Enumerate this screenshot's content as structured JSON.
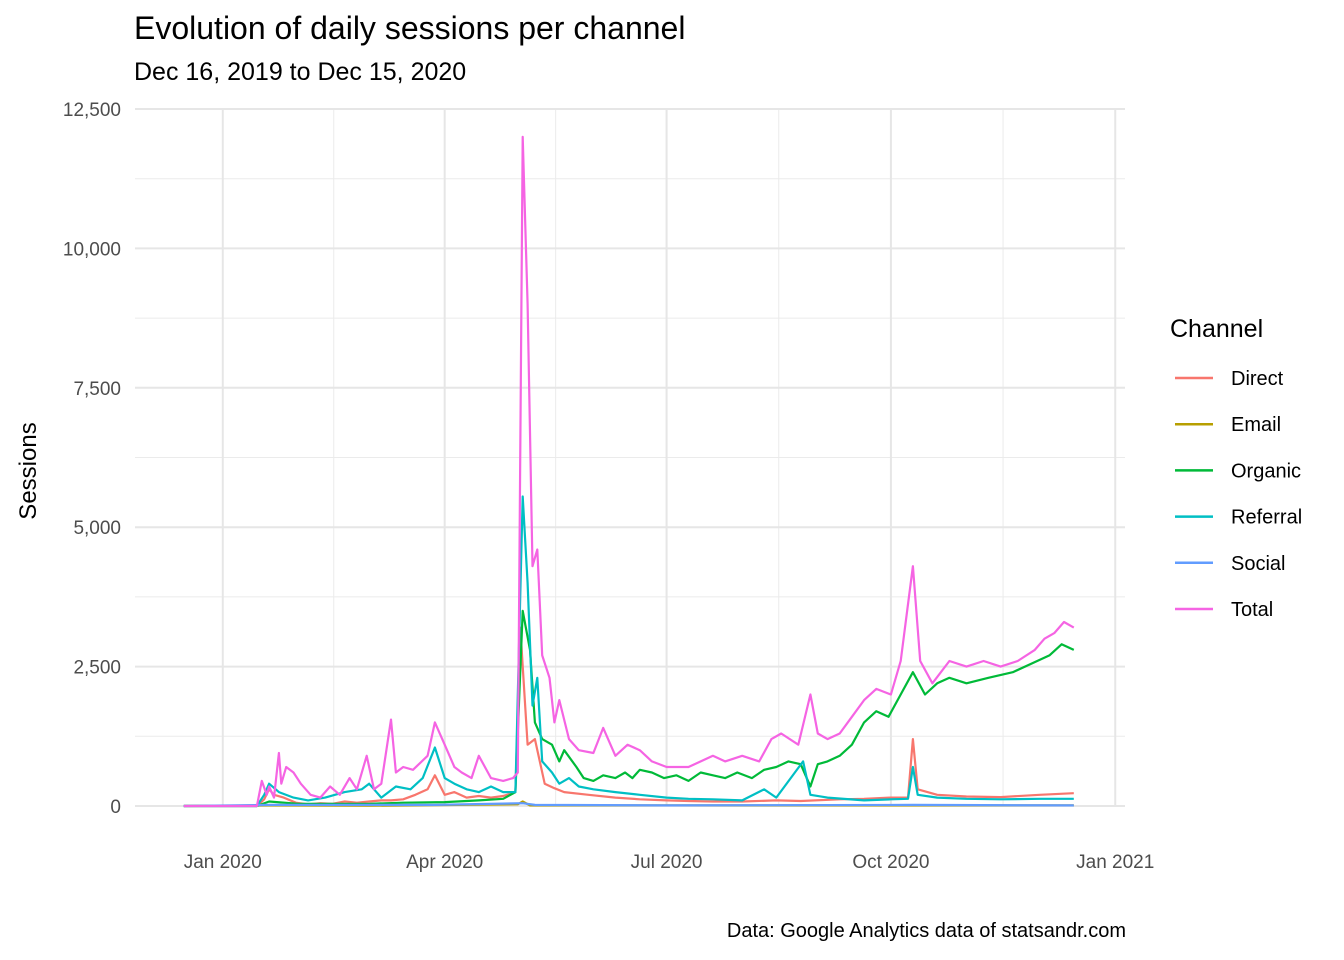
{
  "chart_data": {
    "type": "line",
    "title": "Evolution of daily sessions per channel",
    "subtitle": "Dec 16, 2019 to Dec 15, 2020",
    "caption": "Data: Google Analytics data of statsandr.com",
    "xlabel": "",
    "ylabel": "Sessions",
    "xlim": [
      "2019-11-26",
      "2021-01-05"
    ],
    "ylim": [
      0,
      12500
    ],
    "x_ticks": [
      {
        "date": "2020-01-01",
        "label": "Jan 2020"
      },
      {
        "date": "2020-04-01",
        "label": "Apr 2020"
      },
      {
        "date": "2020-07-01",
        "label": "Jul 2020"
      },
      {
        "date": "2020-10-01",
        "label": "Oct 2020"
      },
      {
        "date": "2021-01-01",
        "label": "Jan 2021"
      }
    ],
    "y_ticks": [
      {
        "value": 0,
        "label": "0"
      },
      {
        "value": 2500,
        "label": "2,500"
      },
      {
        "value": 5000,
        "label": "5,000"
      },
      {
        "value": 7500,
        "label": "7,500"
      },
      {
        "value": 10000,
        "label": "10,000"
      },
      {
        "value": 12500,
        "label": "12,500"
      }
    ],
    "grid": true,
    "legend": {
      "title": "Channel",
      "placement": "right"
    },
    "series": [
      {
        "name": "Direct",
        "color": "#F8766D",
        "points": [
          [
            "2019-12-16",
            0
          ],
          [
            "2020-01-15",
            0
          ],
          [
            "2020-01-18",
            120
          ],
          [
            "2020-01-20",
            300
          ],
          [
            "2020-01-22",
            200
          ],
          [
            "2020-01-26",
            150
          ],
          [
            "2020-01-31",
            60
          ],
          [
            "2020-02-05",
            30
          ],
          [
            "2020-02-10",
            50
          ],
          [
            "2020-02-15",
            40
          ],
          [
            "2020-02-20",
            80
          ],
          [
            "2020-02-25",
            60
          ],
          [
            "2020-03-01",
            80
          ],
          [
            "2020-03-06",
            100
          ],
          [
            "2020-03-10",
            100
          ],
          [
            "2020-03-15",
            120
          ],
          [
            "2020-03-20",
            200
          ],
          [
            "2020-03-25",
            300
          ],
          [
            "2020-03-28",
            550
          ],
          [
            "2020-04-01",
            200
          ],
          [
            "2020-04-05",
            250
          ],
          [
            "2020-04-10",
            150
          ],
          [
            "2020-04-15",
            180
          ],
          [
            "2020-04-20",
            150
          ],
          [
            "2020-04-25",
            180
          ],
          [
            "2020-04-30",
            250
          ],
          [
            "2020-05-02",
            3200
          ],
          [
            "2020-05-05",
            1100
          ],
          [
            "2020-05-08",
            1200
          ],
          [
            "2020-05-12",
            400
          ],
          [
            "2020-05-16",
            320
          ],
          [
            "2020-05-20",
            250
          ],
          [
            "2020-05-30",
            200
          ],
          [
            "2020-06-10",
            150
          ],
          [
            "2020-06-20",
            120
          ],
          [
            "2020-07-01",
            100
          ],
          [
            "2020-07-10",
            90
          ],
          [
            "2020-07-20",
            80
          ],
          [
            "2020-08-01",
            80
          ],
          [
            "2020-08-15",
            100
          ],
          [
            "2020-08-25",
            90
          ],
          [
            "2020-09-10",
            120
          ],
          [
            "2020-09-20",
            130
          ],
          [
            "2020-10-01",
            150
          ],
          [
            "2020-10-08",
            150
          ],
          [
            "2020-10-10",
            1200
          ],
          [
            "2020-10-12",
            300
          ],
          [
            "2020-10-20",
            200
          ],
          [
            "2020-11-01",
            170
          ],
          [
            "2020-11-15",
            160
          ],
          [
            "2020-12-01",
            200
          ],
          [
            "2020-12-15",
            230
          ]
        ]
      },
      {
        "name": "Email",
        "color": "#B79F00",
        "points": [
          [
            "2019-12-16",
            0
          ],
          [
            "2020-01-20",
            10
          ],
          [
            "2020-03-01",
            5
          ],
          [
            "2020-05-01",
            30
          ],
          [
            "2020-05-03",
            80
          ],
          [
            "2020-05-06",
            10
          ],
          [
            "2020-07-01",
            10
          ],
          [
            "2020-09-01",
            10
          ],
          [
            "2020-12-15",
            10
          ]
        ]
      },
      {
        "name": "Organic",
        "color": "#00BA38",
        "points": [
          [
            "2019-12-16",
            0
          ],
          [
            "2020-01-15",
            0
          ],
          [
            "2020-01-20",
            80
          ],
          [
            "2020-02-01",
            40
          ],
          [
            "2020-03-01",
            40
          ],
          [
            "2020-03-15",
            60
          ],
          [
            "2020-04-01",
            70
          ],
          [
            "2020-04-15",
            100
          ],
          [
            "2020-04-25",
            130
          ],
          [
            "2020-04-30",
            250
          ],
          [
            "2020-05-03",
            3500
          ],
          [
            "2020-05-06",
            2800
          ],
          [
            "2020-05-08",
            1500
          ],
          [
            "2020-05-11",
            1200
          ],
          [
            "2020-05-15",
            1100
          ],
          [
            "2020-05-18",
            800
          ],
          [
            "2020-05-20",
            1000
          ],
          [
            "2020-05-25",
            700
          ],
          [
            "2020-05-28",
            500
          ],
          [
            "2020-06-01",
            450
          ],
          [
            "2020-06-05",
            550
          ],
          [
            "2020-06-10",
            500
          ],
          [
            "2020-06-14",
            600
          ],
          [
            "2020-06-17",
            500
          ],
          [
            "2020-06-20",
            650
          ],
          [
            "2020-06-25",
            600
          ],
          [
            "2020-06-30",
            500
          ],
          [
            "2020-07-05",
            550
          ],
          [
            "2020-07-10",
            450
          ],
          [
            "2020-07-15",
            600
          ],
          [
            "2020-07-20",
            550
          ],
          [
            "2020-07-25",
            500
          ],
          [
            "2020-07-30",
            600
          ],
          [
            "2020-08-05",
            500
          ],
          [
            "2020-08-10",
            650
          ],
          [
            "2020-08-15",
            700
          ],
          [
            "2020-08-20",
            800
          ],
          [
            "2020-08-25",
            750
          ],
          [
            "2020-08-29",
            350
          ],
          [
            "2020-09-01",
            750
          ],
          [
            "2020-09-05",
            800
          ],
          [
            "2020-09-10",
            900
          ],
          [
            "2020-09-15",
            1100
          ],
          [
            "2020-09-20",
            1500
          ],
          [
            "2020-09-25",
            1700
          ],
          [
            "2020-09-30",
            1600
          ],
          [
            "2020-10-05",
            2000
          ],
          [
            "2020-10-10",
            2400
          ],
          [
            "2020-10-15",
            2000
          ],
          [
            "2020-10-20",
            2200
          ],
          [
            "2020-10-25",
            2300
          ],
          [
            "2020-11-01",
            2200
          ],
          [
            "2020-11-10",
            2300
          ],
          [
            "2020-11-20",
            2400
          ],
          [
            "2020-11-30",
            2600
          ],
          [
            "2020-12-05",
            2700
          ],
          [
            "2020-12-10",
            2900
          ],
          [
            "2020-12-15",
            2800
          ]
        ]
      },
      {
        "name": "Referral",
        "color": "#00BFC4",
        "points": [
          [
            "2019-12-16",
            0
          ],
          [
            "2020-01-15",
            0
          ],
          [
            "2020-01-18",
            200
          ],
          [
            "2020-01-20",
            400
          ],
          [
            "2020-01-24",
            250
          ],
          [
            "2020-01-30",
            150
          ],
          [
            "2020-02-05",
            100
          ],
          [
            "2020-02-12",
            150
          ],
          [
            "2020-02-20",
            250
          ],
          [
            "2020-02-27",
            300
          ],
          [
            "2020-03-01",
            400
          ],
          [
            "2020-03-06",
            150
          ],
          [
            "2020-03-12",
            350
          ],
          [
            "2020-03-18",
            300
          ],
          [
            "2020-03-23",
            500
          ],
          [
            "2020-03-28",
            1050
          ],
          [
            "2020-04-01",
            500
          ],
          [
            "2020-04-05",
            400
          ],
          [
            "2020-04-10",
            300
          ],
          [
            "2020-04-15",
            250
          ],
          [
            "2020-04-20",
            350
          ],
          [
            "2020-04-25",
            250
          ],
          [
            "2020-04-30",
            250
          ],
          [
            "2020-05-03",
            5550
          ],
          [
            "2020-05-05",
            4000
          ],
          [
            "2020-05-07",
            1800
          ],
          [
            "2020-05-09",
            2300
          ],
          [
            "2020-05-11",
            800
          ],
          [
            "2020-05-15",
            600
          ],
          [
            "2020-05-18",
            400
          ],
          [
            "2020-05-22",
            500
          ],
          [
            "2020-05-26",
            350
          ],
          [
            "2020-06-01",
            300
          ],
          [
            "2020-06-10",
            250
          ],
          [
            "2020-06-20",
            200
          ],
          [
            "2020-07-01",
            150
          ],
          [
            "2020-07-10",
            130
          ],
          [
            "2020-07-20",
            120
          ],
          [
            "2020-08-01",
            100
          ],
          [
            "2020-08-10",
            300
          ],
          [
            "2020-08-15",
            150
          ],
          [
            "2020-08-26",
            800
          ],
          [
            "2020-08-29",
            200
          ],
          [
            "2020-09-05",
            150
          ],
          [
            "2020-09-20",
            100
          ],
          [
            "2020-10-01",
            120
          ],
          [
            "2020-10-08",
            130
          ],
          [
            "2020-10-10",
            700
          ],
          [
            "2020-10-12",
            200
          ],
          [
            "2020-10-20",
            150
          ],
          [
            "2020-11-01",
            130
          ],
          [
            "2020-11-15",
            120
          ],
          [
            "2020-12-01",
            130
          ],
          [
            "2020-12-15",
            130
          ]
        ]
      },
      {
        "name": "Social",
        "color": "#619CFF",
        "points": [
          [
            "2019-12-16",
            0
          ],
          [
            "2020-01-20",
            20
          ],
          [
            "2020-03-28",
            20
          ],
          [
            "2020-05-03",
            50
          ],
          [
            "2020-05-08",
            20
          ],
          [
            "2020-07-01",
            10
          ],
          [
            "2020-10-10",
            20
          ],
          [
            "2020-12-15",
            10
          ]
        ]
      },
      {
        "name": "Total",
        "color": "#F564E3",
        "points": [
          [
            "2019-12-16",
            0
          ],
          [
            "2020-01-15",
            0
          ],
          [
            "2020-01-17",
            450
          ],
          [
            "2020-01-19",
            200
          ],
          [
            "2020-01-20",
            350
          ],
          [
            "2020-01-22",
            150
          ],
          [
            "2020-01-24",
            950
          ],
          [
            "2020-01-25",
            400
          ],
          [
            "2020-01-27",
            700
          ],
          [
            "2020-01-30",
            600
          ],
          [
            "2020-02-02",
            400
          ],
          [
            "2020-02-06",
            200
          ],
          [
            "2020-02-10",
            150
          ],
          [
            "2020-02-14",
            350
          ],
          [
            "2020-02-18",
            200
          ],
          [
            "2020-02-22",
            500
          ],
          [
            "2020-02-25",
            300
          ],
          [
            "2020-02-29",
            900
          ],
          [
            "2020-03-03",
            300
          ],
          [
            "2020-03-06",
            400
          ],
          [
            "2020-03-10",
            1550
          ],
          [
            "2020-03-12",
            600
          ],
          [
            "2020-03-15",
            700
          ],
          [
            "2020-03-19",
            650
          ],
          [
            "2020-03-25",
            900
          ],
          [
            "2020-03-28",
            1500
          ],
          [
            "2020-04-01",
            1100
          ],
          [
            "2020-04-05",
            700
          ],
          [
            "2020-04-08",
            600
          ],
          [
            "2020-04-12",
            500
          ],
          [
            "2020-04-15",
            900
          ],
          [
            "2020-04-20",
            500
          ],
          [
            "2020-04-25",
            450
          ],
          [
            "2020-04-29",
            500
          ],
          [
            "2020-05-01",
            600
          ],
          [
            "2020-05-03",
            12000
          ],
          [
            "2020-05-05",
            9000
          ],
          [
            "2020-05-07",
            4300
          ],
          [
            "2020-05-09",
            4600
          ],
          [
            "2020-05-11",
            2700
          ],
          [
            "2020-05-14",
            2300
          ],
          [
            "2020-05-16",
            1500
          ],
          [
            "2020-05-18",
            1900
          ],
          [
            "2020-05-22",
            1200
          ],
          [
            "2020-05-26",
            1000
          ],
          [
            "2020-06-01",
            950
          ],
          [
            "2020-06-05",
            1400
          ],
          [
            "2020-06-10",
            900
          ],
          [
            "2020-06-15",
            1100
          ],
          [
            "2020-06-20",
            1000
          ],
          [
            "2020-06-25",
            800
          ],
          [
            "2020-07-01",
            700
          ],
          [
            "2020-07-10",
            700
          ],
          [
            "2020-07-20",
            900
          ],
          [
            "2020-07-25",
            800
          ],
          [
            "2020-08-01",
            900
          ],
          [
            "2020-08-08",
            800
          ],
          [
            "2020-08-13",
            1200
          ],
          [
            "2020-08-17",
            1300
          ],
          [
            "2020-08-24",
            1100
          ],
          [
            "2020-08-29",
            2000
          ],
          [
            "2020-09-01",
            1300
          ],
          [
            "2020-09-05",
            1200
          ],
          [
            "2020-09-10",
            1300
          ],
          [
            "2020-09-15",
            1600
          ],
          [
            "2020-09-20",
            1900
          ],
          [
            "2020-09-25",
            2100
          ],
          [
            "2020-10-01",
            2000
          ],
          [
            "2020-10-05",
            2600
          ],
          [
            "2020-10-10",
            4300
          ],
          [
            "2020-10-13",
            2600
          ],
          [
            "2020-10-18",
            2200
          ],
          [
            "2020-10-25",
            2600
          ],
          [
            "2020-11-01",
            2500
          ],
          [
            "2020-11-08",
            2600
          ],
          [
            "2020-11-15",
            2500
          ],
          [
            "2020-11-22",
            2600
          ],
          [
            "2020-11-29",
            2800
          ],
          [
            "2020-12-03",
            3000
          ],
          [
            "2020-12-07",
            3100
          ],
          [
            "2020-12-11",
            3300
          ],
          [
            "2020-12-15",
            3200
          ]
        ]
      }
    ]
  }
}
